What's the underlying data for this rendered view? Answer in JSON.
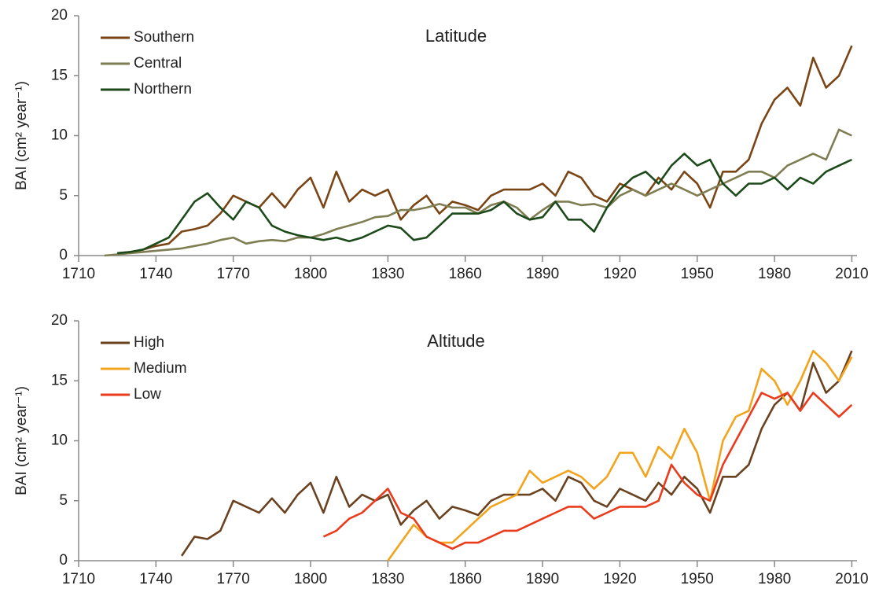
{
  "chart_data": [
    {
      "type": "line",
      "title": "Latitude",
      "y_label": "BAI (cm² year⁻¹)",
      "x": [
        1715,
        1720,
        1725,
        1730,
        1735,
        1740,
        1745,
        1750,
        1755,
        1760,
        1765,
        1770,
        1775,
        1780,
        1785,
        1790,
        1795,
        1800,
        1805,
        1810,
        1815,
        1820,
        1825,
        1830,
        1835,
        1840,
        1845,
        1850,
        1855,
        1860,
        1865,
        1870,
        1875,
        1880,
        1885,
        1890,
        1895,
        1900,
        1905,
        1910,
        1915,
        1920,
        1925,
        1930,
        1935,
        1940,
        1945,
        1950,
        1955,
        1960,
        1965,
        1970,
        1975,
        1980,
        1985,
        1990,
        1995,
        2000,
        2005,
        2010
      ],
      "xlim": [
        1710,
        2012
      ],
      "xticks": [
        1710,
        1740,
        1770,
        1800,
        1830,
        1860,
        1890,
        1920,
        1950,
        1980,
        2010
      ],
      "ylim": [
        0,
        20
      ],
      "yticks": [
        0,
        5,
        10,
        15,
        20
      ],
      "series": [
        {
          "name": "Southern",
          "color": "#7a4515",
          "values": [
            null,
            null,
            0.2,
            0.3,
            0.5,
            0.8,
            1.0,
            2.0,
            2.2,
            2.5,
            3.5,
            5.0,
            4.5,
            4.0,
            5.2,
            4.0,
            5.5,
            6.5,
            4.0,
            7.0,
            4.5,
            5.5,
            5.0,
            5.5,
            3.0,
            4.2,
            5.0,
            3.5,
            4.5,
            4.2,
            3.8,
            5.0,
            5.5,
            5.5,
            5.5,
            6.0,
            5.0,
            7.0,
            6.5,
            5.0,
            4.5,
            6.0,
            5.5,
            5.0,
            6.5,
            5.5,
            7.0,
            6.0,
            4.0,
            7.0,
            7.0,
            8.0,
            11.0,
            13.0,
            14.0,
            12.5,
            16.5,
            14.0,
            15.0,
            17.5
          ]
        },
        {
          "name": "Central",
          "color": "#7f7d52",
          "values": [
            null,
            0,
            0.1,
            0.2,
            0.3,
            0.4,
            0.5,
            0.6,
            0.8,
            1.0,
            1.3,
            1.5,
            1.0,
            1.2,
            1.3,
            1.2,
            1.5,
            1.5,
            1.8,
            2.2,
            2.5,
            2.8,
            3.2,
            3.3,
            3.8,
            3.8,
            4.0,
            4.3,
            4.0,
            4.0,
            3.5,
            4.2,
            4.5,
            4.0,
            3.0,
            3.8,
            4.5,
            4.5,
            4.2,
            4.3,
            4.0,
            5.0,
            5.5,
            5.0,
            5.5,
            6.0,
            5.5,
            5.0,
            5.5,
            6.0,
            6.5,
            7.0,
            7.0,
            6.5,
            7.5,
            8.0,
            8.5,
            8.0,
            10.5,
            10.0
          ]
        },
        {
          "name": "Northern",
          "color": "#1d4a1a",
          "values": [
            null,
            null,
            0.2,
            0.3,
            0.5,
            1.0,
            1.5,
            3.0,
            4.5,
            5.2,
            4.0,
            3.0,
            4.5,
            4.0,
            2.5,
            2.0,
            1.7,
            1.5,
            1.3,
            1.5,
            1.2,
            1.5,
            2.0,
            2.5,
            2.3,
            1.3,
            1.5,
            2.5,
            3.5,
            3.5,
            3.5,
            3.8,
            4.5,
            3.5,
            3.0,
            3.2,
            4.5,
            3.0,
            3.0,
            2.0,
            4.0,
            5.5,
            6.5,
            7.0,
            6.0,
            7.5,
            8.5,
            7.5,
            8.0,
            6.0,
            5.0,
            6.0,
            6.0,
            6.5,
            5.5,
            6.5,
            6.0,
            7.0,
            7.5,
            8.0
          ]
        }
      ]
    },
    {
      "type": "line",
      "title": "Altitude",
      "y_label": "BAI (cm² year⁻¹)",
      "x": [
        1715,
        1720,
        1725,
        1730,
        1735,
        1740,
        1745,
        1750,
        1755,
        1760,
        1765,
        1770,
        1775,
        1780,
        1785,
        1790,
        1795,
        1800,
        1805,
        1810,
        1815,
        1820,
        1825,
        1830,
        1835,
        1840,
        1845,
        1850,
        1855,
        1860,
        1865,
        1870,
        1875,
        1880,
        1885,
        1890,
        1895,
        1900,
        1905,
        1910,
        1915,
        1920,
        1925,
        1930,
        1935,
        1940,
        1945,
        1950,
        1955,
        1960,
        1965,
        1970,
        1975,
        1980,
        1985,
        1990,
        1995,
        2000,
        2005,
        2010
      ],
      "xlim": [
        1710,
        2012
      ],
      "xticks": [
        1710,
        1740,
        1770,
        1800,
        1830,
        1860,
        1890,
        1920,
        1950,
        1980,
        2010
      ],
      "ylim": [
        0,
        20
      ],
      "yticks": [
        0,
        5,
        10,
        15,
        20
      ],
      "series": [
        {
          "name": "High",
          "color": "#6b4220",
          "values": [
            null,
            null,
            null,
            null,
            null,
            null,
            null,
            0.4,
            2.0,
            1.8,
            2.5,
            5.0,
            4.5,
            4.0,
            5.2,
            4.0,
            5.5,
            6.5,
            4.0,
            7.0,
            4.5,
            5.5,
            5.0,
            5.5,
            3.0,
            4.2,
            5.0,
            3.5,
            4.5,
            4.2,
            3.8,
            5.0,
            5.5,
            5.5,
            5.5,
            6.0,
            5.0,
            7.0,
            6.5,
            5.0,
            4.5,
            6.0,
            5.5,
            5.0,
            6.5,
            5.5,
            7.0,
            6.0,
            4.0,
            7.0,
            7.0,
            8.0,
            11.0,
            13.0,
            14.0,
            12.5,
            16.5,
            14.0,
            15.0,
            17.5
          ]
        },
        {
          "name": "Medium",
          "color": "#f2a41d",
          "values": [
            null,
            null,
            null,
            null,
            null,
            null,
            null,
            null,
            null,
            null,
            null,
            null,
            null,
            null,
            null,
            null,
            null,
            null,
            null,
            null,
            null,
            null,
            null,
            0,
            1.5,
            3.0,
            2.0,
            1.5,
            1.5,
            2.5,
            3.5,
            4.5,
            5.0,
            5.5,
            7.5,
            6.5,
            7.0,
            7.5,
            7.0,
            6.0,
            7.0,
            9.0,
            9.0,
            7.0,
            9.5,
            8.5,
            11.0,
            9.0,
            5.0,
            10.0,
            12.0,
            12.5,
            16.0,
            15.0,
            13.0,
            15.0,
            17.5,
            16.5,
            15.0,
            17.0
          ]
        },
        {
          "name": "Low",
          "color": "#ea3c1c",
          "values": [
            null,
            null,
            null,
            null,
            null,
            null,
            null,
            null,
            null,
            null,
            null,
            null,
            null,
            null,
            null,
            null,
            null,
            null,
            2.0,
            2.5,
            3.5,
            4.0,
            5.0,
            6.0,
            4.0,
            3.5,
            2.0,
            1.5,
            1.0,
            1.5,
            1.5,
            2.0,
            2.5,
            2.5,
            3.0,
            3.5,
            4.0,
            4.5,
            4.5,
            3.5,
            4.0,
            4.5,
            4.5,
            4.5,
            5.0,
            8.0,
            6.5,
            5.5,
            5.0,
            8.0,
            10.0,
            12.0,
            14.0,
            13.5,
            14.0,
            12.5,
            14.0,
            13.0,
            12.0,
            13.0
          ]
        }
      ]
    }
  ]
}
